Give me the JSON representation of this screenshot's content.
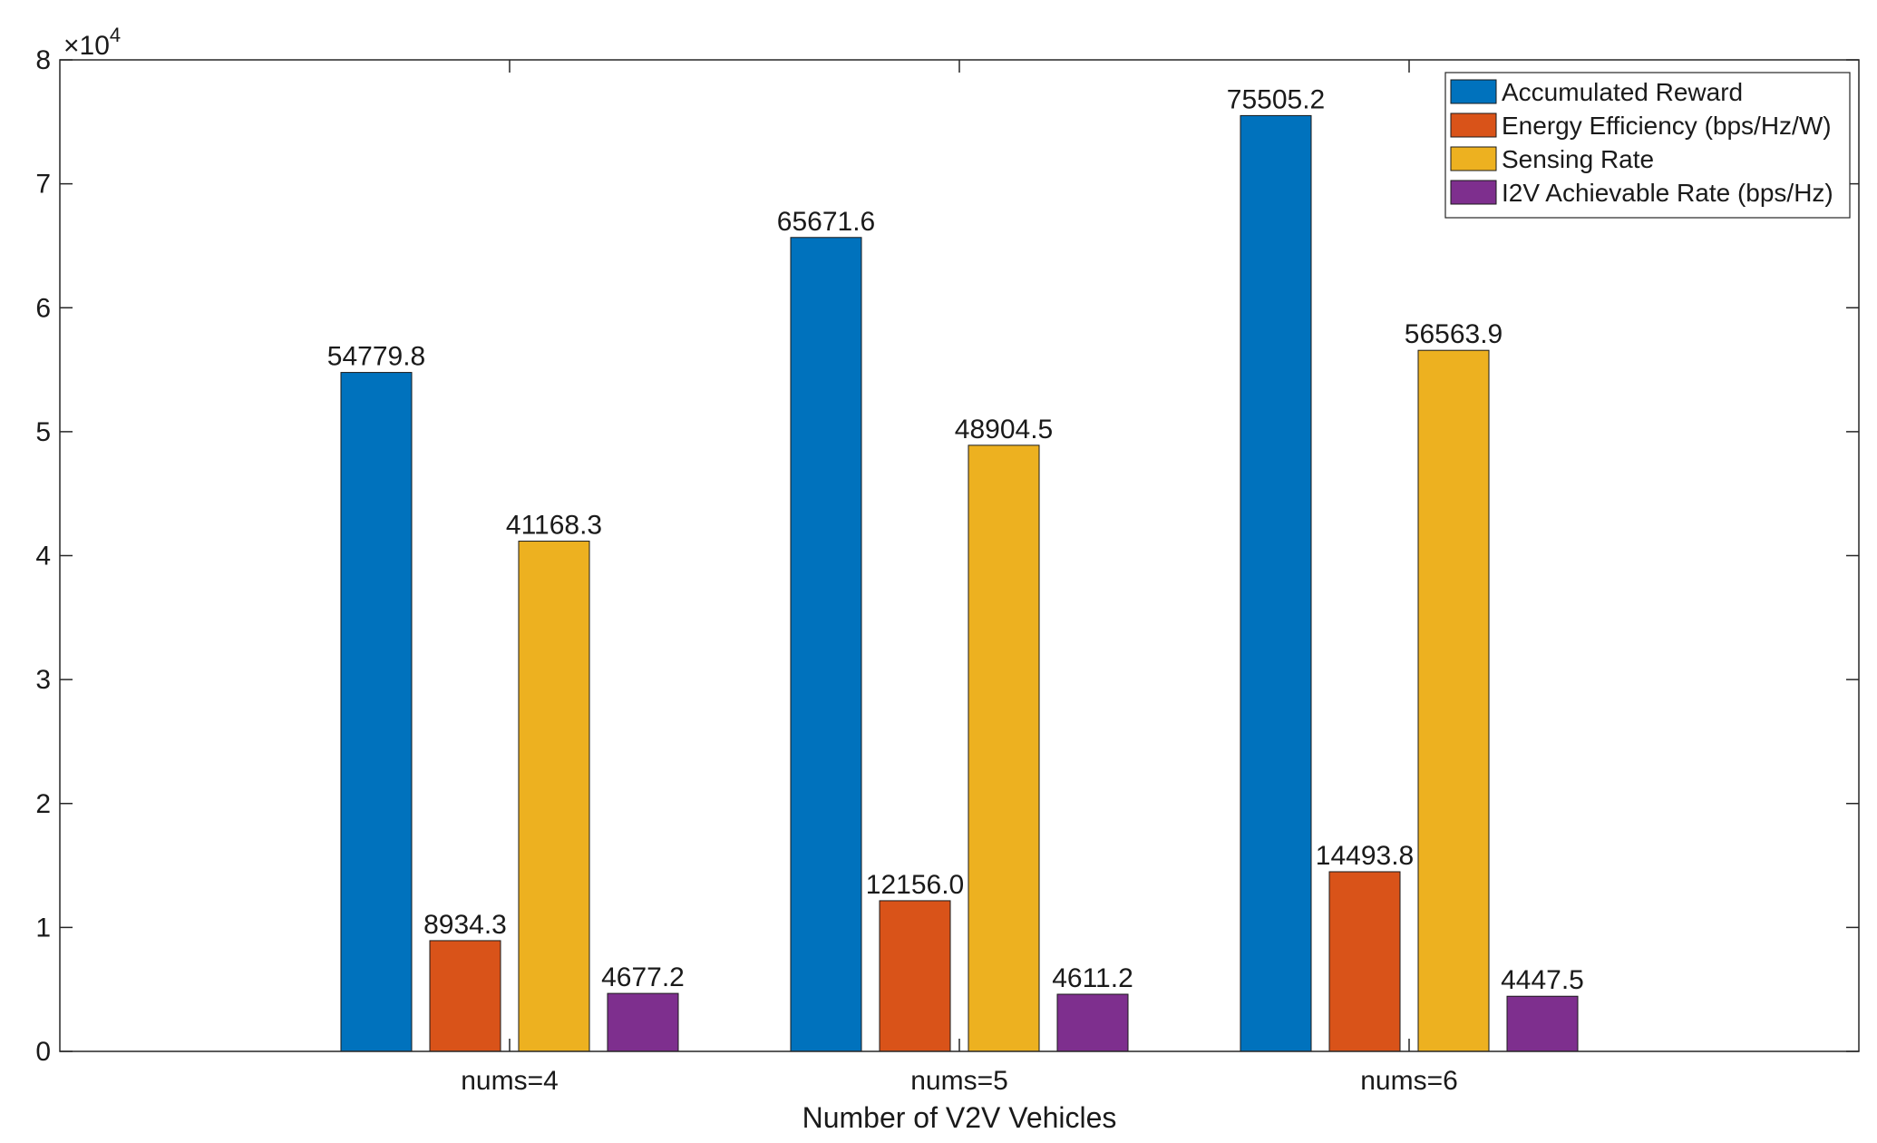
{
  "chart_data": {
    "type": "bar",
    "title": "",
    "xlabel": "Number of V2V Vehicles",
    "ylabel": "",
    "y_exponent_label": "×10",
    "y_exponent_power": "4",
    "ylim": [
      0,
      80000
    ],
    "yticks": [
      0,
      10000,
      20000,
      30000,
      40000,
      50000,
      60000,
      70000,
      80000
    ],
    "ytick_labels": [
      "0",
      "1",
      "2",
      "3",
      "4",
      "5",
      "6",
      "7",
      "8"
    ],
    "categories": [
      "nums=4",
      "nums=5",
      "nums=6"
    ],
    "legend_position": "top-right",
    "grid": false,
    "series": [
      {
        "name": "Accumulated Reward",
        "color": "#0072BD",
        "values": [
          54779.8,
          65671.6,
          75505.2
        ],
        "labels": [
          "54779.8",
          "65671.6",
          "75505.2"
        ]
      },
      {
        "name": "Energy Efficiency (bps/Hz/W)",
        "color": "#D95319",
        "values": [
          8934.3,
          12156.0,
          14493.8
        ],
        "labels": [
          "8934.3",
          "12156.0",
          "14493.8"
        ]
      },
      {
        "name": "Sensing Rate",
        "color": "#EDB120",
        "values": [
          41168.3,
          48904.5,
          56563.9
        ],
        "labels": [
          "41168.3",
          "48904.5",
          "56563.9"
        ]
      },
      {
        "name": "I2V Achievable Rate (bps/Hz)",
        "color": "#7E2F8E",
        "values": [
          4677.2,
          4611.2,
          4447.5
        ],
        "labels": [
          "4677.2",
          "4611.2",
          "4447.5"
        ]
      }
    ]
  }
}
